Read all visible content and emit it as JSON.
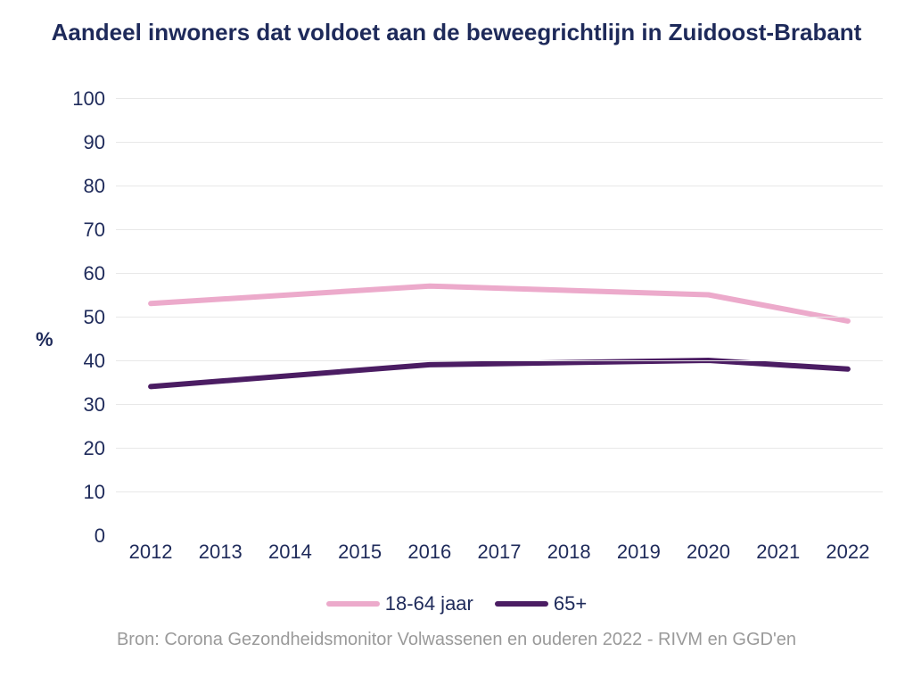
{
  "chart": {
    "type": "line",
    "title": "Aandeel inwoners dat voldoet aan de beweegrichtlijn in Zuidoost-Brabant",
    "title_color": "#1e2a5a",
    "title_fontsize": 26,
    "y_axis_label": "%",
    "y_axis_label_color": "#1e2a5a",
    "background_color": "#ffffff",
    "grid_color": "#e8e8e8",
    "axis_label_color": "#1e2a5a",
    "tick_fontsize": 22,
    "ylim": [
      0,
      100
    ],
    "ytick_step": 10,
    "x_categories": [
      "2012",
      "2013",
      "2014",
      "2015",
      "2016",
      "2017",
      "2018",
      "2019",
      "2020",
      "2021",
      "2022"
    ],
    "series": [
      {
        "name": "18-64 jaar",
        "color": "#ecaacb",
        "line_width": 6,
        "data_x": [
          2012,
          2016,
          2020,
          2022
        ],
        "data_y": [
          53,
          57,
          55,
          49
        ]
      },
      {
        "name": "65+",
        "color": "#4b1d63",
        "line_width": 6,
        "data_x": [
          2012,
          2016,
          2020,
          2022
        ],
        "data_y": [
          34,
          39,
          40,
          38
        ]
      }
    ],
    "legend_fontsize": 22,
    "legend_swatch_width": 60,
    "legend_swatch_height": 6,
    "source_text": "Bron: Corona Gezondheidsmonitor Volwassenen en ouderen 2022 - RIVM en GGD'en",
    "source_color": "#9a9a9a",
    "source_fontsize": 20
  }
}
